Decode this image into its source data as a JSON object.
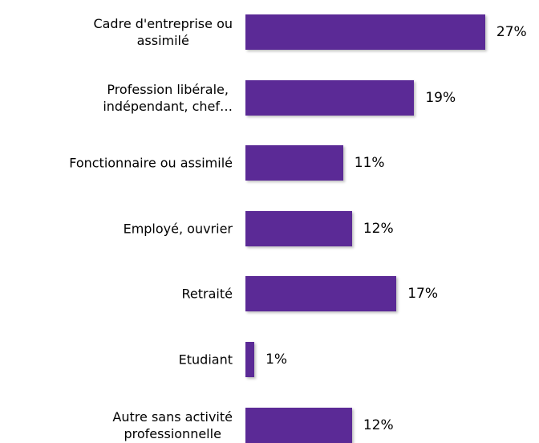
{
  "chart_data": {
    "type": "bar",
    "orientation": "horizontal",
    "categories": [
      "Cadre d'entreprise ou\nassimilé",
      "Profession libérale,\nindépendant, chef…",
      "Fonctionnaire ou assimilé",
      "Employé, ouvrier",
      "Retraité",
      "Etudiant",
      "Autre sans activité\nprofessionnelle"
    ],
    "values": [
      27,
      19,
      11,
      12,
      17,
      1,
      12
    ],
    "value_labels": [
      "27%",
      "19%",
      "11%",
      "12%",
      "17%",
      "1%",
      "12%"
    ],
    "color": "#5b2a96"
  }
}
